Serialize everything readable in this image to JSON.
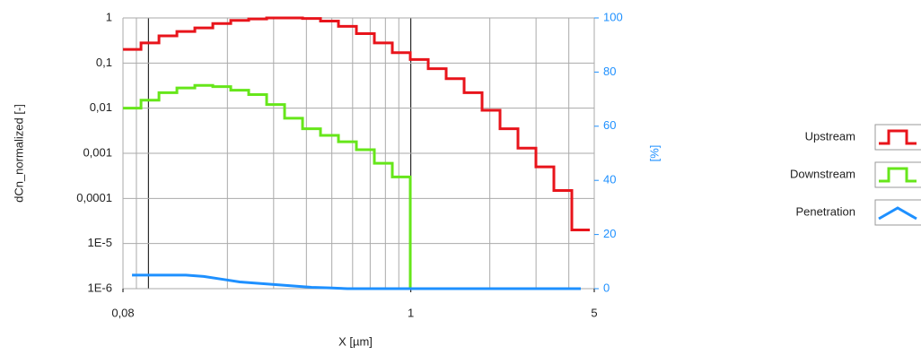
{
  "chart_data": {
    "type": "step",
    "xlabel": "X [µm]",
    "ylabel": "dCn_normalized [-]",
    "y2label": "[%]",
    "xscale": "log",
    "yscale": "log",
    "grid": true,
    "legend": "right",
    "xlim": [
      0.08,
      5
    ],
    "xticks": [
      {
        "value": 0.08,
        "label": "0,08"
      },
      1,
      5
    ],
    "ylim": [
      1e-06,
      1
    ],
    "yticks": [
      1,
      {
        "value": 0.1,
        "label": "0,1"
      },
      {
        "value": 0.01,
        "label": "0,01"
      },
      {
        "value": 0.001,
        "label": "0,001"
      },
      {
        "value": 0.0001,
        "label": "0,0001"
      },
      {
        "value": 1e-05,
        "label": "1E-5"
      },
      {
        "value": 1e-06,
        "label": "1E-6"
      }
    ],
    "y2lim": [
      0,
      100
    ],
    "y2ticks": [
      0,
      20,
      40,
      60,
      80,
      100
    ],
    "x": [
      0.0866,
      0.1014,
      0.1187,
      0.1389,
      0.1626,
      0.1904,
      0.2228,
      0.2608,
      0.3053,
      0.3574,
      0.4184,
      0.4898,
      0.5733,
      0.6711,
      0.7856,
      0.9197,
      1.0766,
      1.2602,
      1.4752,
      1.7269,
      2.0215,
      2.3664,
      2.77,
      3.2426,
      3.7958,
      4.4434
    ],
    "series": [
      {
        "name": "Upstream",
        "color": "#e8141b",
        "values": [
          0.2,
          0.28,
          0.4,
          0.5,
          0.6,
          0.75,
          0.88,
          0.95,
          1,
          1,
          0.97,
          0.85,
          0.65,
          0.45,
          0.28,
          0.17,
          0.12,
          0.075,
          0.045,
          0.022,
          0.009,
          0.0035,
          0.0013,
          0.0005,
          0.00015,
          2e-05
        ]
      },
      {
        "name": "Downstream",
        "color": "#66e61a",
        "values": [
          0.01,
          0.015,
          0.022,
          0.028,
          0.032,
          0.03,
          0.025,
          0.02,
          0.012,
          0.006,
          0.0035,
          0.0025,
          0.0018,
          0.0012,
          0.0006,
          0.0003,
          1e-06,
          null,
          null,
          null,
          null,
          null,
          null,
          null,
          null,
          null
        ]
      },
      {
        "name": "Penetration",
        "color": "#1e90ff",
        "axis": "y2",
        "values": [
          5,
          5,
          5,
          5,
          4.5,
          3.5,
          2.5,
          2,
          1.5,
          1,
          0.5,
          0.3,
          0,
          0,
          0,
          0,
          0,
          0,
          0,
          0,
          0,
          0,
          0,
          0,
          0,
          0
        ]
      }
    ]
  }
}
